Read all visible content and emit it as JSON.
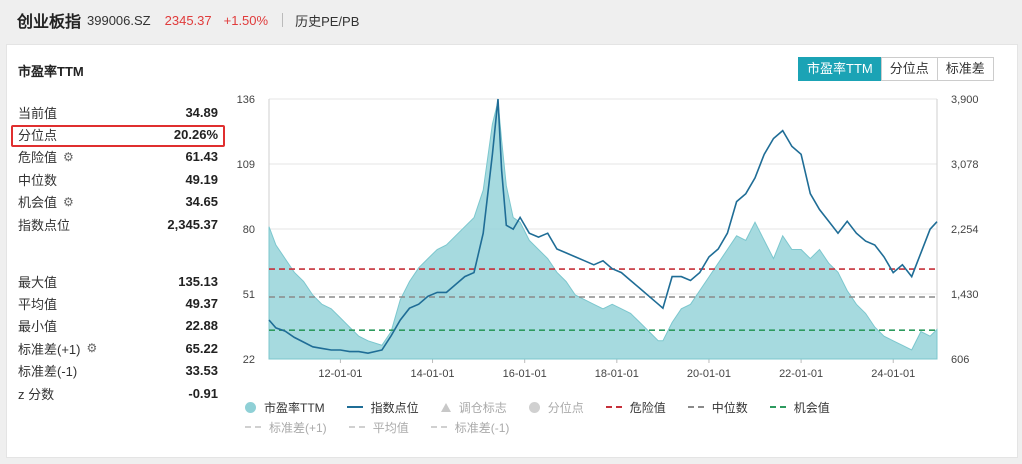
{
  "header": {
    "name": "创业板指",
    "code": "399006.SZ",
    "price": "2345.37",
    "change": "+1.50%",
    "link": "历史PE/PB"
  },
  "card": {
    "title": "市盈率TTM",
    "tabs": [
      {
        "label": "市盈率TTM",
        "active": true
      },
      {
        "label": "分位点",
        "active": false
      },
      {
        "label": "标准差",
        "active": false
      }
    ]
  },
  "stats_top": [
    {
      "label": "当前值",
      "value": "34.89",
      "icon": ""
    },
    {
      "label": "分位点",
      "value": "20.26%",
      "icon": ""
    },
    {
      "label": "危险值",
      "value": "61.43",
      "icon": "gear-icon"
    },
    {
      "label": "中位数",
      "value": "49.19",
      "icon": ""
    },
    {
      "label": "机会值",
      "value": "34.65",
      "icon": "gear-icon"
    },
    {
      "label": "指数点位",
      "value": "2,345.37",
      "icon": ""
    }
  ],
  "stats_bottom": [
    {
      "label": "最大值",
      "value": "135.13",
      "icon": ""
    },
    {
      "label": "平均值",
      "value": "49.37",
      "icon": ""
    },
    {
      "label": "最小值",
      "value": "22.88",
      "icon": ""
    },
    {
      "label": "标准差(+1)",
      "value": "65.22",
      "icon": "gear-icon"
    },
    {
      "label": "标准差(-1)",
      "value": "33.53",
      "icon": ""
    },
    {
      "label": "z 分数",
      "value": "-0.91",
      "icon": ""
    }
  ],
  "colors": {
    "area": "#96d3d9",
    "index_line": "#1f6d96",
    "danger": "#c6303a",
    "median": "#8a8a8a",
    "opportunity": "#2d9a5e",
    "accent": "#1ba3b5"
  },
  "chart_data": {
    "type": "area",
    "x_ticks": [
      "12-01-01",
      "14-01-01",
      "16-01-01",
      "18-01-01",
      "20-01-01",
      "22-01-01",
      "24-01-01"
    ],
    "y_left_ticks": [
      "136",
      "109",
      "80",
      "51",
      "22"
    ],
    "y_right_ticks": [
      "3,900",
      "3,078",
      "2,254",
      "1,430",
      "606"
    ],
    "y_left_range": [
      22,
      136
    ],
    "y_right_range": [
      606,
      3900
    ],
    "x_range": [
      "2010-06",
      "2024-12"
    ],
    "reference_lines": {
      "danger": 61.43,
      "median": 49.19,
      "opportunity": 34.65
    },
    "series": [
      {
        "name": "市盈率TTM",
        "axis": "left",
        "kind": "area",
        "x": [
          2010.45,
          2010.6,
          2010.8,
          2011.0,
          2011.2,
          2011.4,
          2011.6,
          2011.8,
          2012.0,
          2012.2,
          2012.4,
          2012.6,
          2012.9,
          2013.1,
          2013.3,
          2013.5,
          2013.7,
          2013.9,
          2014.1,
          2014.3,
          2014.5,
          2014.7,
          2014.9,
          2015.1,
          2015.3,
          2015.42,
          2015.5,
          2015.6,
          2015.75,
          2015.9,
          2016.1,
          2016.3,
          2016.5,
          2016.7,
          2016.9,
          2017.1,
          2017.3,
          2017.5,
          2017.7,
          2017.9,
          2018.1,
          2018.3,
          2018.5,
          2018.7,
          2018.9,
          2019.0,
          2019.2,
          2019.4,
          2019.6,
          2019.8,
          2020.0,
          2020.2,
          2020.4,
          2020.6,
          2020.8,
          2021.0,
          2021.2,
          2021.4,
          2021.6,
          2021.8,
          2022.0,
          2022.2,
          2022.4,
          2022.6,
          2022.8,
          2023.0,
          2023.2,
          2023.4,
          2023.6,
          2023.8,
          2024.0,
          2024.2,
          2024.4,
          2024.6,
          2024.8,
          2024.95
        ],
        "values": [
          80,
          72,
          66,
          60,
          56,
          50,
          46,
          44,
          40,
          36,
          32,
          30,
          28,
          34,
          48,
          56,
          62,
          66,
          70,
          72,
          76,
          80,
          84,
          96,
          125,
          135,
          118,
          98,
          84,
          82,
          74,
          70,
          66,
          60,
          56,
          50,
          48,
          46,
          44,
          46,
          44,
          42,
          38,
          34,
          30,
          30,
          38,
          44,
          46,
          52,
          58,
          64,
          70,
          76,
          74,
          82,
          74,
          66,
          76,
          70,
          70,
          66,
          70,
          64,
          60,
          52,
          46,
          42,
          36,
          32,
          30,
          28,
          26,
          34,
          32,
          35
        ]
      },
      {
        "name": "指数点位",
        "axis": "right",
        "kind": "line",
        "x": [
          2010.45,
          2010.6,
          2010.8,
          2011.0,
          2011.2,
          2011.4,
          2011.6,
          2011.8,
          2012.0,
          2012.2,
          2012.4,
          2012.6,
          2012.9,
          2013.1,
          2013.3,
          2013.5,
          2013.7,
          2013.9,
          2014.1,
          2014.3,
          2014.5,
          2014.7,
          2014.9,
          2015.1,
          2015.3,
          2015.42,
          2015.5,
          2015.6,
          2015.75,
          2015.9,
          2016.1,
          2016.3,
          2016.5,
          2016.7,
          2016.9,
          2017.1,
          2017.3,
          2017.5,
          2017.7,
          2017.9,
          2018.1,
          2018.3,
          2018.5,
          2018.7,
          2018.9,
          2019.0,
          2019.2,
          2019.4,
          2019.6,
          2019.8,
          2020.0,
          2020.2,
          2020.4,
          2020.6,
          2020.8,
          2021.0,
          2021.2,
          2021.4,
          2021.6,
          2021.8,
          2022.0,
          2022.2,
          2022.4,
          2022.6,
          2022.8,
          2023.0,
          2023.2,
          2023.4,
          2023.6,
          2023.8,
          2024.0,
          2024.2,
          2024.4,
          2024.6,
          2024.8,
          2024.95
        ],
        "values": [
          1100,
          1000,
          960,
          880,
          820,
          760,
          740,
          720,
          720,
          700,
          700,
          680,
          720,
          900,
          1100,
          1250,
          1300,
          1400,
          1450,
          1450,
          1550,
          1650,
          1700,
          2200,
          3200,
          3900,
          3000,
          2300,
          2250,
          2400,
          2200,
          2150,
          2200,
          2000,
          1950,
          1900,
          1850,
          1800,
          1850,
          1750,
          1700,
          1600,
          1500,
          1400,
          1300,
          1250,
          1650,
          1650,
          1600,
          1700,
          1900,
          2000,
          2200,
          2600,
          2700,
          2900,
          3200,
          3400,
          3500,
          3300,
          3200,
          2700,
          2500,
          2350,
          2200,
          2350,
          2200,
          2100,
          2050,
          1900,
          1700,
          1800,
          1650,
          1950,
          2250,
          2345
        ]
      }
    ],
    "legend": [
      {
        "label": "市盈率TTM",
        "kind": "dot",
        "color": "#8fd0d6",
        "active": true
      },
      {
        "label": "指数点位",
        "kind": "line",
        "color": "#1f6d96",
        "active": true
      },
      {
        "label": "调仓标志",
        "kind": "triangle",
        "color": "#c8c8c8",
        "active": false
      },
      {
        "label": "分位点",
        "kind": "dot",
        "color": "#d0d0d0",
        "active": false
      },
      {
        "label": "危险值",
        "kind": "dash",
        "color": "#c6303a",
        "active": true
      },
      {
        "label": "中位数",
        "kind": "dash",
        "color": "#8a8a8a",
        "active": true
      },
      {
        "label": "机会值",
        "kind": "dash",
        "color": "#2d9a5e",
        "active": true
      },
      {
        "label": "标准差(+1)",
        "kind": "dash",
        "color": "#d0d0d0",
        "active": false
      },
      {
        "label": "平均值",
        "kind": "dash",
        "color": "#d0d0d0",
        "active": false
      },
      {
        "label": "标准差(-1)",
        "kind": "dash",
        "color": "#d0d0d0",
        "active": false
      }
    ]
  }
}
